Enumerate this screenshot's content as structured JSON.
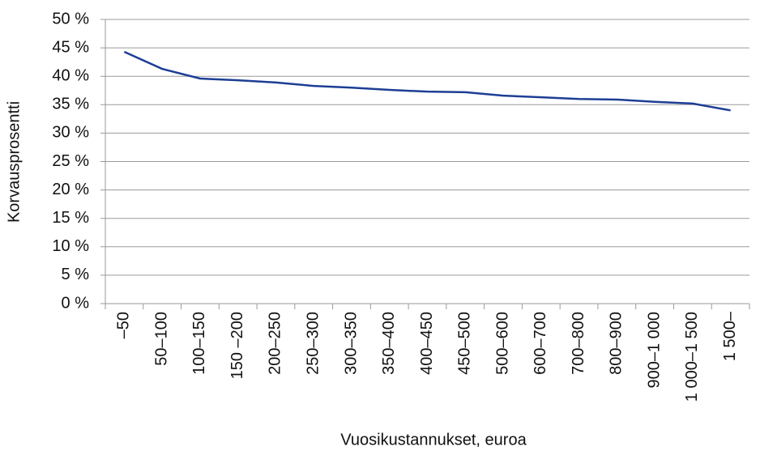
{
  "chart_data": {
    "type": "line",
    "x_label": "Vuosikustannukset, euroa",
    "y_label": "Korvausprosentti",
    "categories": [
      "–50",
      "50–100",
      "100–150",
      "150 –200",
      "200–250",
      "250–300",
      "300–350",
      "350–400",
      "400–450",
      "450–500",
      "500–600",
      "600–700",
      "700–800",
      "800–900",
      "900–1 000",
      "1 000–1 500",
      "1 500–"
    ],
    "series": [
      {
        "color": "#1d3e94",
        "values": [
          44.3,
          41.3,
          39.6,
          39.3,
          38.9,
          38.3,
          38.0,
          37.6,
          37.3,
          37.2,
          36.6,
          36.3,
          36.0,
          35.9,
          35.5,
          35.2,
          34.0
        ]
      }
    ],
    "ylim": [
      0,
      50
    ],
    "yticks": [
      {
        "value": 0,
        "label": "0 %"
      },
      {
        "value": 5,
        "label": "5 %"
      },
      {
        "value": 10,
        "label": "10 %"
      },
      {
        "value": 15,
        "label": "15 %"
      },
      {
        "value": 20,
        "label": "20 %"
      },
      {
        "value": 25,
        "label": "25 %"
      },
      {
        "value": 30,
        "label": "30 %"
      },
      {
        "value": 35,
        "label": "35 %"
      },
      {
        "value": 40,
        "label": "40 %"
      },
      {
        "value": 45,
        "label": "45 %"
      },
      {
        "value": 50,
        "label": "50 %"
      }
    ],
    "grid": true
  }
}
